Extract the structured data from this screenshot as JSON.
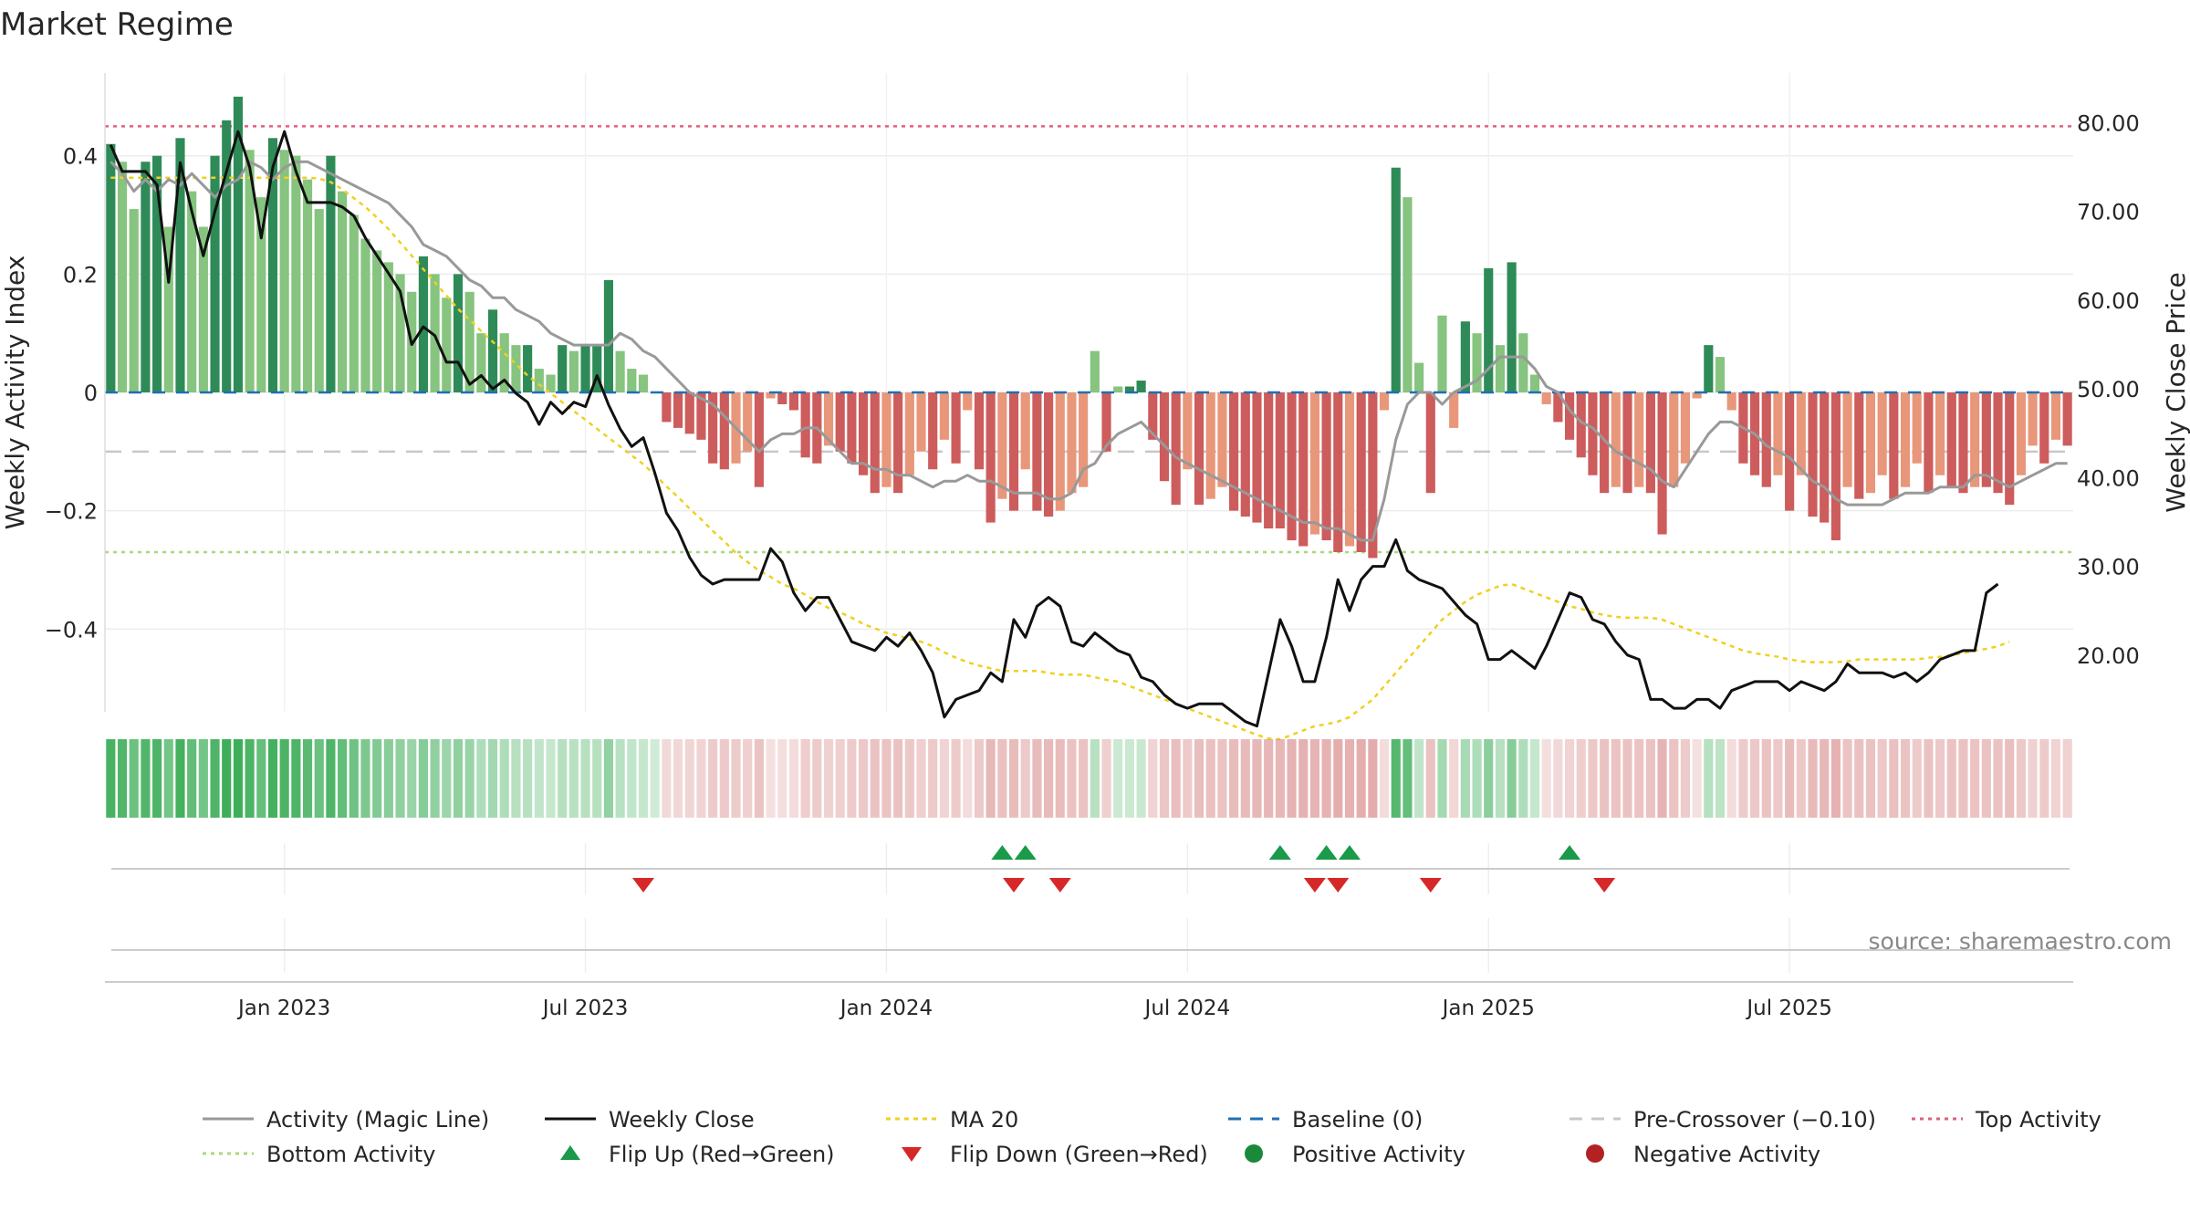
{
  "chart_data": {
    "type": "bar",
    "title": "Market Regime",
    "source": "source: sharemaestro.com",
    "ylabel_left": "Weekly Activity Index",
    "ylabel_right": "Weekly Close Price",
    "left_ticks": [
      "0.4",
      "0.2",
      "0",
      "−0.2",
      "−0.4"
    ],
    "left_tick_values": [
      0.4,
      0.2,
      0,
      -0.2,
      -0.4
    ],
    "right_ticks": [
      "80.00",
      "70.00",
      "60.00",
      "50.00",
      "40.00",
      "30.00",
      "20.00"
    ],
    "right_tick_values": [
      80,
      70,
      60,
      50,
      40,
      30,
      20
    ],
    "x_ticks": [
      "Jan 2023",
      "Jul 2023",
      "Jan 2024",
      "Jul 2024",
      "Jan 2025",
      "Jul 2025"
    ],
    "x_tick_weeks": [
      15,
      41,
      67,
      93,
      119,
      145
    ],
    "ylim_left": [
      -0.54,
      0.54
    ],
    "ylim_right": [
      13.6,
      85.6
    ],
    "levels": {
      "top_activity": 0.45,
      "bottom_activity": -0.27,
      "pre_crossover": -0.1,
      "baseline": 0
    },
    "activity_values": [
      0.42,
      0.39,
      0.31,
      0.39,
      0.4,
      0.28,
      0.43,
      0.34,
      0.28,
      0.4,
      0.46,
      0.5,
      0.41,
      0.33,
      0.43,
      0.41,
      0.4,
      0.36,
      0.31,
      0.4,
      0.34,
      0.3,
      0.26,
      0.24,
      0.22,
      0.2,
      0.17,
      0.23,
      0.2,
      0.16,
      0.2,
      0.17,
      0.1,
      0.14,
      0.1,
      0.08,
      0.08,
      0.04,
      0.03,
      0.08,
      0.07,
      0.08,
      0.08,
      0.19,
      0.07,
      0.04,
      0.03,
      0,
      -0.05,
      -0.06,
      -0.07,
      -0.08,
      -0.12,
      -0.13,
      -0.12,
      -0.1,
      -0.16,
      -0.01,
      -0.02,
      -0.03,
      -0.11,
      -0.12,
      -0.09,
      -0.1,
      -0.12,
      -0.14,
      -0.17,
      -0.16,
      -0.17,
      -0.14,
      -0.1,
      -0.13,
      -0.08,
      -0.12,
      -0.03,
      -0.13,
      -0.22,
      -0.18,
      -0.2,
      -0.13,
      -0.2,
      -0.21,
      -0.2,
      -0.17,
      -0.16,
      0.07,
      -0.1,
      0.01,
      0.01,
      0.02,
      -0.08,
      -0.15,
      -0.19,
      -0.13,
      -0.19,
      -0.18,
      -0.16,
      -0.2,
      -0.21,
      -0.22,
      -0.23,
      -0.23,
      -0.25,
      -0.26,
      -0.24,
      -0.25,
      -0.27,
      -0.26,
      -0.27,
      -0.28,
      -0.03,
      0.38,
      0.33,
      0.05,
      -0.17,
      0.13,
      -0.06,
      0.12,
      0.1,
      0.21,
      0.08,
      0.22,
      0.1,
      0.03,
      -0.02,
      -0.05,
      -0.08,
      -0.11,
      -0.14,
      -0.17,
      -0.16,
      -0.17,
      -0.16,
      -0.17,
      -0.24,
      -0.16,
      -0.12,
      -0.01,
      0.08,
      0.06,
      -0.03,
      -0.12,
      -0.14,
      -0.16,
      -0.14,
      -0.2,
      -0.14,
      -0.21,
      -0.22,
      -0.25,
      -0.16,
      -0.18,
      -0.17,
      -0.14,
      -0.18,
      -0.16,
      -0.12,
      -0.17,
      -0.14,
      -0.16,
      -0.17,
      -0.16,
      -0.16,
      -0.17,
      -0.19,
      -0.14,
      -0.09,
      -0.12,
      -0.08,
      -0.09
    ],
    "series": [
      {
        "name": "Activity (Magic Line)",
        "color": "#999999",
        "values": [
          0.39,
          0.37,
          0.34,
          0.36,
          0.34,
          0.36,
          0.35,
          0.37,
          0.35,
          0.33,
          0.35,
          0.36,
          0.39,
          0.38,
          0.36,
          0.38,
          0.39,
          0.39,
          0.38,
          0.37,
          0.36,
          0.35,
          0.34,
          0.33,
          0.32,
          0.3,
          0.28,
          0.25,
          0.24,
          0.23,
          0.21,
          0.19,
          0.18,
          0.16,
          0.16,
          0.14,
          0.13,
          0.12,
          0.1,
          0.09,
          0.08,
          0.08,
          0.08,
          0.08,
          0.1,
          0.09,
          0.07,
          0.06,
          0.04,
          0.02,
          0,
          -0.01,
          -0.02,
          -0.04,
          -0.06,
          -0.08,
          -0.1,
          -0.08,
          -0.07,
          -0.07,
          -0.06,
          -0.06,
          -0.08,
          -0.1,
          -0.12,
          -0.12,
          -0.13,
          -0.13,
          -0.14,
          -0.14,
          -0.15,
          -0.16,
          -0.15,
          -0.15,
          -0.14,
          -0.15,
          -0.15,
          -0.16,
          -0.17,
          -0.17,
          -0.17,
          -0.18,
          -0.18,
          -0.17,
          -0.13,
          -0.12,
          -0.09,
          -0.07,
          -0.06,
          -0.05,
          -0.07,
          -0.09,
          -0.11,
          -0.12,
          -0.13,
          -0.14,
          -0.15,
          -0.16,
          -0.17,
          -0.18,
          -0.19,
          -0.2,
          -0.21,
          -0.22,
          -0.22,
          -0.23,
          -0.23,
          -0.24,
          -0.25,
          -0.25,
          -0.18,
          -0.08,
          -0.02,
          0,
          0,
          -0.02,
          0,
          0.01,
          0.02,
          0.04,
          0.06,
          0.06,
          0.06,
          0.04,
          0.01,
          0,
          -0.03,
          -0.05,
          -0.06,
          -0.08,
          -0.1,
          -0.11,
          -0.12,
          -0.13,
          -0.15,
          -0.16,
          -0.13,
          -0.1,
          -0.07,
          -0.05,
          -0.05,
          -0.06,
          -0.07,
          -0.09,
          -0.1,
          -0.11,
          -0.13,
          -0.15,
          -0.16,
          -0.18,
          -0.19,
          -0.19,
          -0.19,
          -0.19,
          -0.18,
          -0.17,
          -0.17,
          -0.17,
          -0.16,
          -0.16,
          -0.16,
          -0.14,
          -0.14,
          -0.15,
          -0.16,
          -0.15,
          -0.14,
          -0.13,
          -0.12,
          -0.12
        ]
      },
      {
        "name": "Weekly Close",
        "color": "#111111",
        "values": [
          77.5,
          74.5,
          74.5,
          74.5,
          73,
          62,
          75.5,
          70,
          65,
          70,
          74.5,
          79,
          75,
          67,
          75,
          79,
          74.5,
          71,
          71,
          71,
          70.5,
          69.5,
          67,
          65,
          63,
          61,
          55,
          57,
          56,
          53,
          53,
          50.5,
          51.5,
          50,
          51,
          49.5,
          48.5,
          46,
          48.5,
          47.2,
          48.5,
          48,
          51.5,
          48.2,
          45.5,
          43.5,
          44.5,
          40.5,
          36,
          34,
          31,
          29,
          28,
          28.5,
          28.5,
          28.5,
          28.5,
          32,
          30.5,
          27,
          25,
          26.5,
          26.5,
          24,
          21.5,
          21,
          20.5,
          22,
          21,
          22.5,
          20.5,
          18,
          13,
          15,
          15.5,
          16,
          18,
          17,
          24,
          22,
          25.5,
          26.5,
          25.5,
          21.5,
          21,
          22.5,
          21.5,
          20.5,
          20,
          17.5,
          17,
          15.5,
          14.5,
          14,
          14.5,
          14.5,
          14.5,
          13.5,
          12.5,
          12,
          18,
          24,
          21,
          17,
          17,
          22,
          28.5,
          25,
          28.5,
          30,
          30,
          33,
          29.5,
          28.5,
          28,
          27.5,
          26,
          24.5,
          23.5,
          19.5,
          19.5,
          20.5,
          19.5,
          18.5,
          21,
          24,
          27,
          26.5,
          24,
          23.5,
          21.5,
          20,
          19.5,
          15,
          15,
          14,
          14,
          15,
          15,
          14,
          16,
          16.5,
          17,
          17,
          17,
          16,
          17,
          16.5,
          16,
          17,
          19,
          18,
          18,
          18,
          17.5,
          18,
          17,
          18,
          19.5,
          20,
          20.5,
          20.5,
          27,
          28
        ]
      },
      {
        "name": "MA 20",
        "color": "#f0d020",
        "values": [
          73.8,
          73.8,
          73.8,
          73.8,
          73.8,
          73.8,
          73.8,
          73.8,
          73.8,
          73.8,
          73.8,
          73.8,
          73.8,
          73.8,
          73.8,
          73.8,
          73.8,
          73.8,
          73.7,
          73.3,
          72.5,
          71.5,
          70.5,
          69.3,
          68,
          66.5,
          65,
          63.5,
          62,
          60.5,
          59,
          57.8,
          56.5,
          55.3,
          54,
          52.8,
          51.5,
          50.5,
          49.5,
          48.5,
          47.5,
          46.5,
          45.5,
          44.5,
          43.5,
          42.5,
          41.5,
          40.3,
          39,
          37.8,
          36.5,
          35.3,
          34,
          32.8,
          31.5,
          30.5,
          29.5,
          28.8,
          28,
          27.5,
          26.8,
          26,
          25.3,
          24.8,
          24.2,
          23.5,
          23,
          22.5,
          22.2,
          21.8,
          21.5,
          21,
          20.3,
          19.7,
          19.2,
          18.8,
          18.5,
          18.2,
          18.2,
          18.2,
          18.2,
          18,
          17.8,
          17.8,
          17.8,
          17.5,
          17.2,
          17,
          16.5,
          16,
          15.5,
          15,
          14.5,
          14,
          13.5,
          13,
          12.5,
          12,
          11.5,
          11,
          10.6,
          10.5,
          11,
          11.5,
          12,
          12.2,
          12.5,
          13,
          14,
          15,
          16.5,
          18,
          19.5,
          21,
          22.5,
          24,
          25,
          26,
          26.8,
          27.3,
          27.8,
          28,
          27.5,
          27,
          26.5,
          26,
          25.5,
          25.2,
          24.8,
          24.5,
          24.3,
          24.2,
          24.2,
          24.2,
          24,
          23.5,
          23,
          22.5,
          22,
          21.5,
          21,
          20.5,
          20.2,
          20,
          19.8,
          19.5,
          19.3,
          19.2,
          19.2,
          19.2,
          19.3,
          19.5,
          19.5,
          19.5,
          19.5,
          19.5,
          19.5,
          19.7,
          19.8,
          20,
          20.2,
          20.5,
          20.7,
          21,
          21.5
        ]
      },
      {
        "name": "Baseline (0)",
        "color": "#1f6fb4"
      },
      {
        "name": "Pre-Crossover (−0.10)",
        "color": "#c8c8c8"
      },
      {
        "name": "Top Activity",
        "color": "#e0607e"
      },
      {
        "name": "Bottom Activity",
        "color": "#a8d87a"
      },
      {
        "name": "Flip Up (Red→Green)",
        "color": "#1a9a4a"
      },
      {
        "name": "Flip Down (Green→Red)",
        "color": "#d62828"
      },
      {
        "name": "Positive Activity",
        "color": "#1a8a3a"
      },
      {
        "name": "Negative Activity",
        "color": "#b22222"
      }
    ],
    "flip_up_weeks": [
      77,
      79,
      101,
      105,
      107,
      126
    ],
    "flip_down_weeks": [
      46,
      78,
      82,
      104,
      106,
      114,
      129
    ],
    "regime_strip": "weekly activity sign shaded green (positive) / red (negative)",
    "colors": {
      "pos_strong": "#2e8b57",
      "pos_light": "#86c47f",
      "neg_strong": "#cd5c5c",
      "neg_light": "#e8977a",
      "strip_pos": "#3fae5a",
      "strip_neg": "#d98c8c"
    }
  }
}
